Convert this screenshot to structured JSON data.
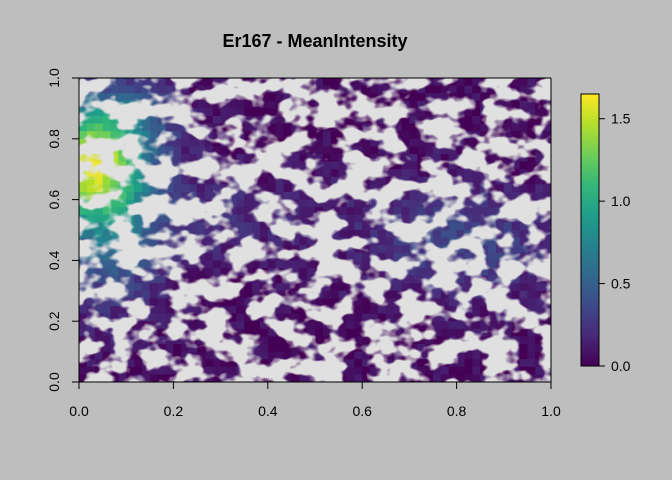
{
  "chart_data": {
    "type": "heatmap",
    "title": "Er167 - MeanIntensity",
    "xlabel": "",
    "ylabel": "",
    "xlim": [
      0,
      1
    ],
    "ylim": [
      0,
      1
    ],
    "x_ticks": [
      "0.0",
      "0.2",
      "0.4",
      "0.6",
      "0.8",
      "1.0"
    ],
    "y_ticks": [
      "0.0",
      "0.2",
      "0.4",
      "0.6",
      "0.8",
      "1.0"
    ],
    "colorbar": {
      "range": [
        0,
        1.65
      ],
      "ticks": [
        "0.0",
        "0.5",
        "1.0",
        "1.5"
      ],
      "palette": [
        "#440154",
        "#482878",
        "#3e4a89",
        "#31688e",
        "#26828e",
        "#1f9e89",
        "#35b779",
        "#6ece58",
        "#b5de2b",
        "#fde725"
      ]
    },
    "background_color": "#bebebe",
    "grid": false
  }
}
